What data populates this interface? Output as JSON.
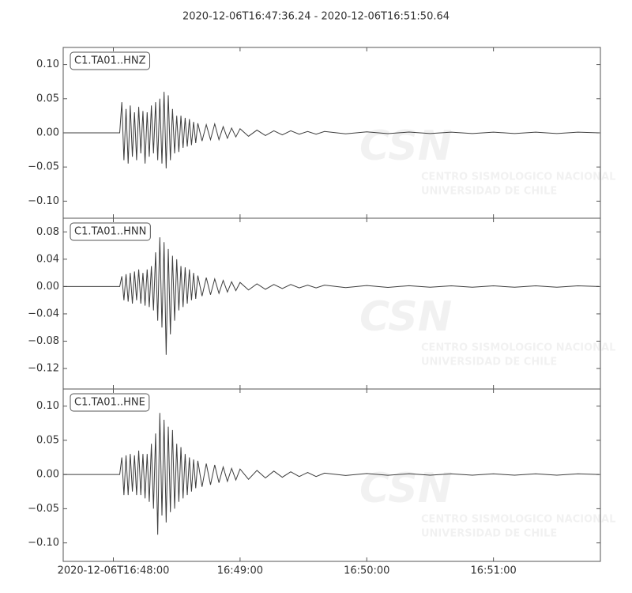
{
  "title": "2020-12-06T16:47:36.24  -  2020-12-06T16:51:50.64",
  "watermark": {
    "logo": "CSN",
    "line1": "CENTRO SISMOLOGICO NACIONAL",
    "line2": "UNIVERSIDAD DE CHILE"
  },
  "chart_data": [
    {
      "type": "line",
      "xlim": [
        "2020-12-06T16:47:36.24",
        "2020-12-06T16:51:50.64"
      ],
      "ylim": [
        -0.125,
        0.125
      ],
      "yticks": [
        {
          "value": 0.1,
          "label": "0.10"
        },
        0.05,
        {
          "value": 0,
          "label": "0.00"
        },
        {
          "value": -0.05,
          "label": "−0.05"
        },
        {
          "value": -0.1,
          "label": "−0.10"
        }
      ],
      "x": [
        "16:47:36.24",
        "16:48:03",
        "16:48:04",
        "16:48:05",
        "16:48:06",
        "16:48:07",
        "16:48:08",
        "16:48:09",
        "16:48:10",
        "16:48:11",
        "16:48:12",
        "16:48:13",
        "16:48:14",
        "16:48:15",
        "16:48:16",
        "16:48:17",
        "16:48:18",
        "16:48:19",
        "16:48:20",
        "16:48:21",
        "16:48:22",
        "16:48:23",
        "16:48:24",
        "16:48:25",
        "16:48:26",
        "16:48:27",
        "16:48:28",
        "16:48:29",
        "16:48:30",
        "16:48:31",
        "16:48:32",
        "16:48:33",
        "16:48:34",
        "16:48:35",
        "16:48:36",
        "16:48:37",
        "16:48:38",
        "16:48:39",
        "16:48:40",
        "16:48:42",
        "16:48:44",
        "16:48:46",
        "16:48:48",
        "16:48:50",
        "16:48:52",
        "16:48:54",
        "16:48:56",
        "16:48:58",
        "16:49:00",
        "16:49:04",
        "16:49:08",
        "16:49:12",
        "16:49:16",
        "16:49:20",
        "16:49:24",
        "16:49:28",
        "16:49:32",
        "16:49:36",
        "16:49:40",
        "16:49:50",
        "16:50:00",
        "16:50:10",
        "16:50:20",
        "16:50:30",
        "16:50:40",
        "16:50:50",
        "16:51:00",
        "16:51:10",
        "16:51:20",
        "16:51:30",
        "16:51:40",
        "16:51:50"
      ],
      "series": [
        {
          "name": "C1.TA01..HNZ",
          "color": "#3d3d3d",
          "values": [
            0,
            0,
            0.045,
            -0.04,
            0.035,
            -0.045,
            0.04,
            -0.035,
            0.03,
            -0.04,
            0.038,
            -0.03,
            0.032,
            -0.045,
            0.03,
            -0.035,
            0.04,
            -0.03,
            0.045,
            -0.04,
            0.05,
            -0.045,
            0.06,
            -0.052,
            0.055,
            -0.04,
            0.035,
            -0.03,
            0.025,
            -0.028,
            0.025,
            -0.022,
            0.022,
            -0.02,
            0.02,
            -0.018,
            0.016,
            -0.015,
            0.014,
            -0.012,
            0.012,
            -0.01,
            0.013,
            -0.01,
            0.009,
            -0.008,
            0.007,
            -0.006,
            0.006,
            -0.005,
            0.004,
            -0.004,
            0.003,
            -0.003,
            0.003,
            -0.002,
            0.002,
            -0.002,
            0.002,
            -0.0015,
            0.0015,
            -0.0012,
            0.0012,
            -0.001,
            0.001,
            -0.001,
            0.001,
            -0.001,
            0.001,
            -0.001,
            0.001,
            0
          ]
        }
      ]
    },
    {
      "type": "line",
      "xlim": [
        "2020-12-06T16:47:36.24",
        "2020-12-06T16:51:50.64"
      ],
      "ylim": [
        -0.15,
        0.1
      ],
      "yticks": [
        0.08,
        0.04,
        {
          "value": 0,
          "label": "0.00"
        },
        {
          "value": -0.04,
          "label": "−0.04"
        },
        {
          "value": -0.08,
          "label": "−0.08"
        },
        {
          "value": -0.12,
          "label": "−0.12"
        }
      ],
      "x": [
        "16:47:36.24",
        "16:48:03",
        "16:48:04",
        "16:48:05",
        "16:48:06",
        "16:48:07",
        "16:48:08",
        "16:48:09",
        "16:48:10",
        "16:48:11",
        "16:48:12",
        "16:48:13",
        "16:48:14",
        "16:48:15",
        "16:48:16",
        "16:48:17",
        "16:48:18",
        "16:48:19",
        "16:48:20",
        "16:48:21",
        "16:48:22",
        "16:48:23",
        "16:48:24",
        "16:48:25",
        "16:48:26",
        "16:48:27",
        "16:48:28",
        "16:48:29",
        "16:48:30",
        "16:48:31",
        "16:48:32",
        "16:48:33",
        "16:48:34",
        "16:48:35",
        "16:48:36",
        "16:48:37",
        "16:48:38",
        "16:48:39",
        "16:48:40",
        "16:48:42",
        "16:48:44",
        "16:48:46",
        "16:48:48",
        "16:48:50",
        "16:48:52",
        "16:48:54",
        "16:48:56",
        "16:48:58",
        "16:49:00",
        "16:49:04",
        "16:49:08",
        "16:49:12",
        "16:49:16",
        "16:49:20",
        "16:49:24",
        "16:49:28",
        "16:49:32",
        "16:49:36",
        "16:49:40",
        "16:49:50",
        "16:50:00",
        "16:50:10",
        "16:50:20",
        "16:50:30",
        "16:50:40",
        "16:50:50",
        "16:51:00",
        "16:51:10",
        "16:51:20",
        "16:51:30",
        "16:51:40",
        "16:51:50"
      ],
      "series": [
        {
          "name": "C1.TA01..HNN",
          "color": "#3d3d3d",
          "values": [
            0,
            0,
            0.015,
            -0.02,
            0.018,
            -0.022,
            0.02,
            -0.025,
            0.022,
            -0.02,
            0.025,
            -0.025,
            0.02,
            -0.028,
            0.025,
            -0.03,
            0.03,
            -0.035,
            0.05,
            -0.05,
            0.072,
            -0.06,
            0.065,
            -0.1,
            0.055,
            -0.07,
            0.045,
            -0.05,
            0.04,
            -0.035,
            0.03,
            -0.03,
            0.028,
            -0.025,
            0.025,
            -0.02,
            0.02,
            -0.018,
            0.016,
            -0.014,
            0.013,
            -0.012,
            0.011,
            -0.01,
            0.009,
            -0.008,
            0.007,
            -0.006,
            0.006,
            -0.005,
            0.004,
            -0.004,
            0.003,
            -0.003,
            0.003,
            -0.002,
            0.002,
            -0.002,
            0.002,
            -0.0015,
            0.0015,
            -0.0012,
            0.0012,
            -0.001,
            0.001,
            -0.001,
            0.001,
            -0.001,
            0.001,
            -0.001,
            0.001,
            0
          ]
        }
      ]
    },
    {
      "type": "line",
      "xlim": [
        "2020-12-06T16:47:36.24",
        "2020-12-06T16:51:50.64"
      ],
      "ylim": [
        -0.127,
        0.125
      ],
      "yticks": [
        {
          "value": 0.1,
          "label": "0.10"
        },
        0.05,
        {
          "value": 0,
          "label": "0.00"
        },
        {
          "value": -0.05,
          "label": "−0.05"
        },
        {
          "value": -0.1,
          "label": "−0.10"
        }
      ],
      "xticks": [
        "2020-12-06T16:48:00",
        {
          "value": "2020-12-06T16:49:00",
          "label": "16:49:00"
        },
        {
          "value": "2020-12-06T16:50:00",
          "label": "16:50:00"
        },
        {
          "value": "2020-12-06T16:51:00",
          "label": "16:51:00"
        }
      ],
      "x": [
        "16:47:36.24",
        "16:48:03",
        "16:48:04",
        "16:48:05",
        "16:48:06",
        "16:48:07",
        "16:48:08",
        "16:48:09",
        "16:48:10",
        "16:48:11",
        "16:48:12",
        "16:48:13",
        "16:48:14",
        "16:48:15",
        "16:48:16",
        "16:48:17",
        "16:48:18",
        "16:48:19",
        "16:48:20",
        "16:48:21",
        "16:48:22",
        "16:48:23",
        "16:48:24",
        "16:48:25",
        "16:48:26",
        "16:48:27",
        "16:48:28",
        "16:48:29",
        "16:48:30",
        "16:48:31",
        "16:48:32",
        "16:48:33",
        "16:48:34",
        "16:48:35",
        "16:48:36",
        "16:48:37",
        "16:48:38",
        "16:48:39",
        "16:48:40",
        "16:48:42",
        "16:48:44",
        "16:48:46",
        "16:48:48",
        "16:48:50",
        "16:48:52",
        "16:48:54",
        "16:48:56",
        "16:48:58",
        "16:49:00",
        "16:49:04",
        "16:49:08",
        "16:49:12",
        "16:49:16",
        "16:49:20",
        "16:49:24",
        "16:49:28",
        "16:49:32",
        "16:49:36",
        "16:49:40",
        "16:49:50",
        "16:50:00",
        "16:50:10",
        "16:50:20",
        "16:50:30",
        "16:50:40",
        "16:50:50",
        "16:51:00",
        "16:51:10",
        "16:51:20",
        "16:51:30",
        "16:51:40",
        "16:51:50"
      ],
      "series": [
        {
          "name": "C1.TA01..HNE",
          "color": "#3d3d3d",
          "values": [
            0,
            0,
            0.025,
            -0.03,
            0.028,
            -0.03,
            0.03,
            -0.025,
            0.028,
            -0.03,
            0.035,
            -0.03,
            0.03,
            -0.035,
            0.03,
            -0.04,
            0.045,
            -0.05,
            0.06,
            -0.088,
            0.09,
            -0.06,
            0.08,
            -0.07,
            0.07,
            -0.055,
            0.065,
            -0.05,
            0.045,
            -0.04,
            0.04,
            -0.035,
            0.03,
            -0.03,
            0.025,
            -0.025,
            0.022,
            -0.02,
            0.02,
            -0.018,
            0.016,
            -0.015,
            0.014,
            -0.012,
            0.011,
            -0.01,
            0.009,
            -0.008,
            0.008,
            -0.007,
            0.006,
            -0.005,
            0.005,
            -0.004,
            0.004,
            -0.003,
            0.003,
            -0.003,
            0.002,
            -0.0015,
            0.0015,
            -0.0012,
            0.0012,
            -0.001,
            0.001,
            -0.001,
            0.001,
            -0.001,
            0.001,
            -0.001,
            0.001,
            0
          ]
        }
      ]
    }
  ]
}
